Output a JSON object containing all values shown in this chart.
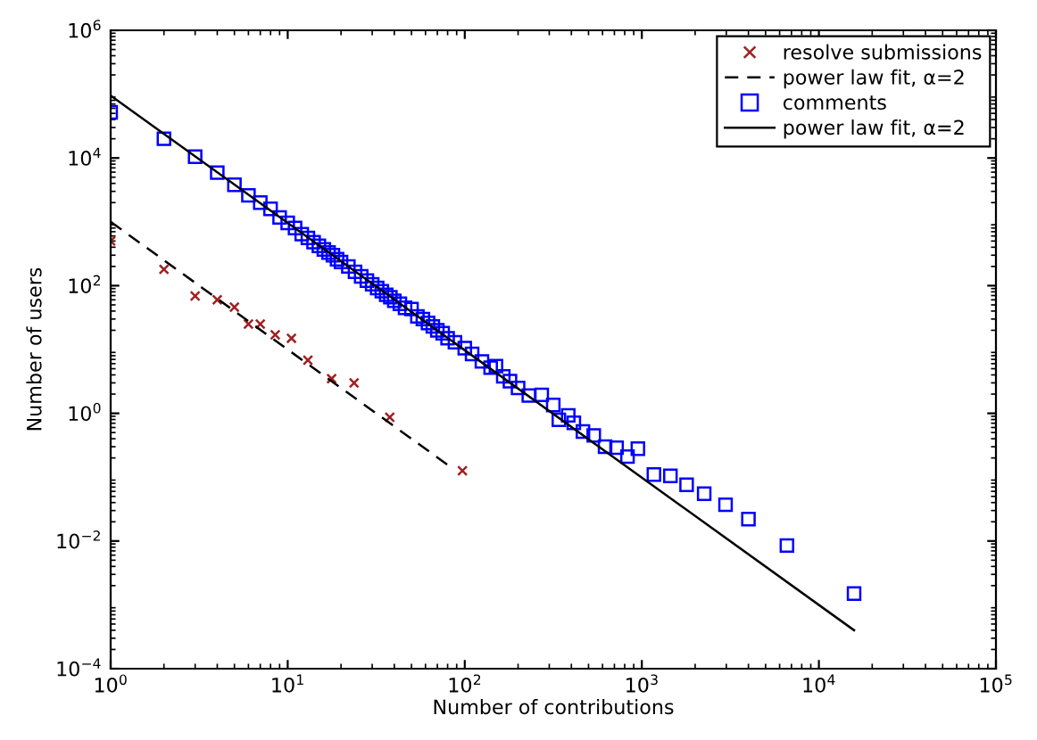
{
  "chart_data": {
    "type": "scatter",
    "xlabel": "Number of contributions",
    "ylabel": "Number of users",
    "log": "xy",
    "grid": false,
    "legend": "top right",
    "xlim": [
      1,
      100000
    ],
    "ylim": [
      0.0001,
      1000000
    ],
    "xticks": [
      {
        "value": 1,
        "label": "10$^{0}$"
      },
      {
        "value": 10,
        "label": "10$^{1}$"
      },
      {
        "value": 100,
        "label": "10$^{2}$"
      },
      {
        "value": 1000,
        "label": "10$^{3}$"
      },
      {
        "value": 10000,
        "label": "10$^{4}$"
      },
      {
        "value": 100000,
        "label": "10$^{5}$"
      }
    ],
    "yticks": [
      {
        "value": 0.0001,
        "label": "10$^{−4}$"
      },
      {
        "value": 0.01,
        "label": "10$^{−2}$"
      },
      {
        "value": 1,
        "label": "10$^{0}$"
      },
      {
        "value": 100,
        "label": "10$^{2}$"
      },
      {
        "value": 10000,
        "label": "10$^{4}$"
      },
      {
        "value": 1000000,
        "label": "10$^{6}$"
      }
    ],
    "series": [
      {
        "name": "resolve submissions",
        "marker": "cross",
        "color": "#a02020",
        "x": [
          1,
          2,
          3,
          4,
          5,
          6,
          7,
          8.5,
          10.5,
          13,
          17.7,
          23.7,
          37.7,
          97
        ],
        "values": [
          500,
          180,
          69,
          60,
          46,
          25,
          25,
          17,
          15,
          6.8,
          3.5,
          3.0,
          0.87,
          0.126
        ]
      },
      {
        "name": "power law fit, α=2",
        "type": "line",
        "line_style": "dashed",
        "marker": "none",
        "color": "#000000",
        "x": [
          1,
          80
        ],
        "values": [
          1000,
          0.156
        ]
      },
      {
        "name": "comments",
        "marker": "square",
        "color": "#0000ff",
        "x": [
          1,
          2,
          3,
          4,
          5,
          6,
          7,
          8,
          9,
          10,
          11,
          12,
          13,
          14,
          15,
          16,
          17,
          18,
          19,
          20,
          22,
          24,
          26,
          28,
          30,
          32,
          34,
          36,
          38,
          40,
          43,
          46,
          50,
          54,
          58,
          62,
          66,
          70,
          75,
          80,
          88,
          100,
          110,
          125,
          140,
          150,
          165,
          180,
          200,
          230,
          272,
          316,
          340,
          384,
          413,
          465,
          535,
          620,
          720,
          830,
          950,
          1170,
          1450,
          1790,
          2250,
          2970,
          4000,
          6600,
          15800
        ],
        "values": [
          52000,
          20000,
          10500,
          5900,
          3800,
          2600,
          2000,
          1600,
          1170,
          960,
          800,
          640,
          560,
          480,
          420,
          370,
          330,
          300,
          260,
          235,
          200,
          165,
          140,
          120,
          105,
          92,
          82,
          72,
          66,
          58,
          52,
          45,
          43,
          33,
          30,
          26,
          23,
          20,
          18,
          15,
          13,
          10.5,
          8.5,
          6.5,
          5.2,
          5.5,
          3.8,
          3.2,
          2.5,
          1.9,
          1.95,
          1.35,
          0.79,
          0.93,
          0.71,
          0.52,
          0.45,
          0.3,
          0.29,
          0.21,
          0.28,
          0.11,
          0.105,
          0.076,
          0.055,
          0.037,
          0.022,
          0.0085,
          0.0015
        ]
      },
      {
        "name": "power law fit, α=2",
        "type": "line",
        "line_style": "solid",
        "marker": "none",
        "color": "#000000",
        "x": [
          1,
          15800
        ],
        "values": [
          95000,
          0.0004
        ]
      }
    ]
  }
}
